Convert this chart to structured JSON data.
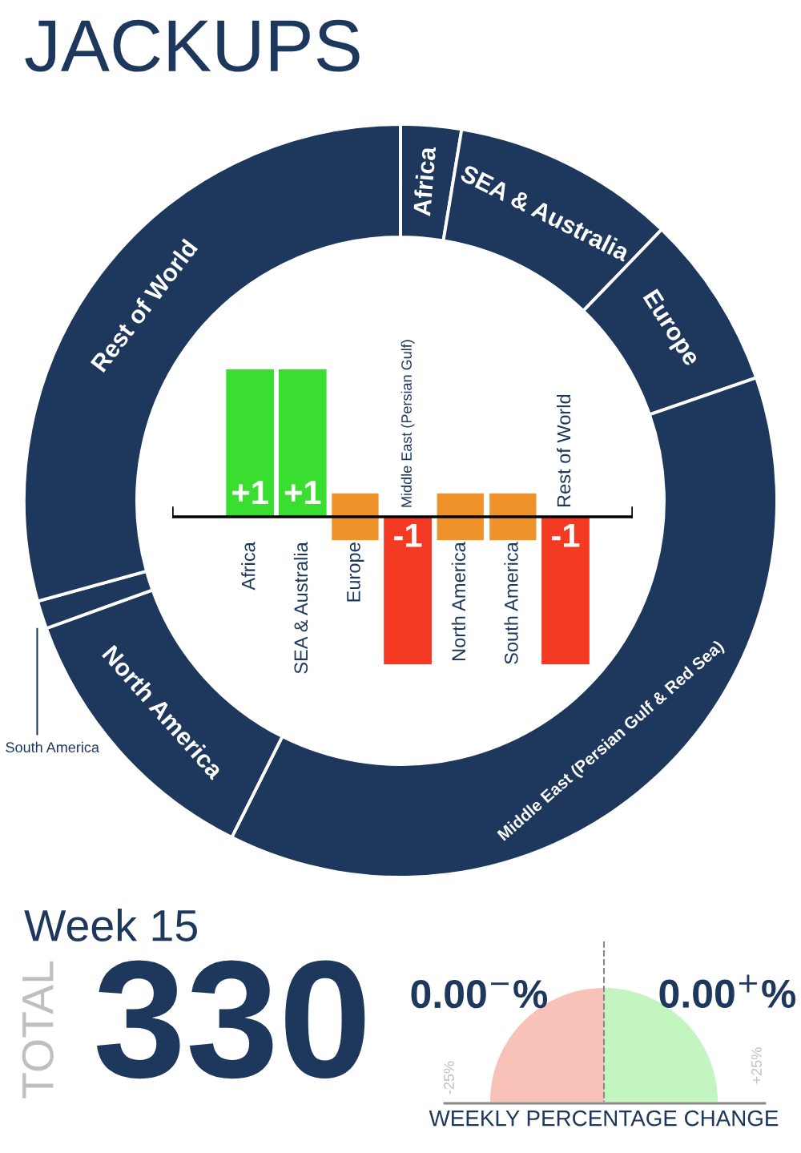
{
  "chart_data": [
    {
      "type": "donut",
      "title": "JACKUPS",
      "categories": [
        "Africa",
        "SEA & Australia",
        "Europe",
        "Middle East (Persian Gulf & Red Sea)",
        "North America",
        "South America",
        "Rest of World"
      ],
      "values": [
        2.6,
        9.6,
        7.5,
        37.7,
        12.1,
        1.2,
        29.3
      ],
      "colors": [
        "#1d375d",
        "#1d375d",
        "#1d375d",
        "#1d375d",
        "#1d375d",
        "#1d375d",
        "#1d375d"
      ]
    },
    {
      "type": "bar",
      "categories": [
        "Africa",
        "SEA & Australia",
        "Europe",
        "Middle East (Persian Gulf)",
        "North America",
        "South America",
        "Rest of World"
      ],
      "values": [
        1,
        1,
        0,
        -1,
        0,
        0,
        -1
      ],
      "colors": [
        "#3ade30",
        "#3ade30",
        "#f0922a",
        "#f43a22",
        "#f0922a",
        "#f0922a",
        "#f43a22"
      ],
      "value_labels": [
        "+1",
        "+1",
        null,
        "-1",
        null,
        null,
        "-1"
      ]
    },
    {
      "type": "other",
      "title": "Week 15",
      "annotations": [
        "TOTAL",
        "330",
        "0.00$^{−}$%",
        "0.00$^{+}$%",
        "-25%",
        "+25%",
        "WEEKLY PERCENTAGE CHANGE"
      ]
    }
  ]
}
